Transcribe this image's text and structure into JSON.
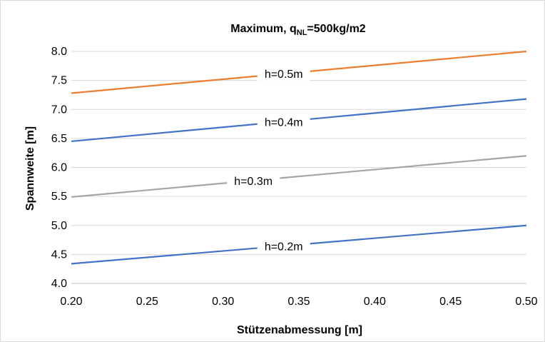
{
  "chart_data": {
    "type": "line",
    "title": "Maximum, q",
    "title_subscript": "NL",
    "title_suffix": "=500kg/m2",
    "xlabel": "Stützenabmessung [m]",
    "ylabel": "Spannweite [m]",
    "xlim": [
      0.2,
      0.5
    ],
    "ylim": [
      4.0,
      8.0
    ],
    "x_ticks": [
      "0.20",
      "0.25",
      "0.30",
      "0.35",
      "0.40",
      "0.45",
      "0.50"
    ],
    "y_ticks": [
      "4.0",
      "4.5",
      "5.0",
      "5.5",
      "6.0",
      "6.5",
      "7.0",
      "7.5",
      "8.0"
    ],
    "grid": "horizontal",
    "legend": "inline labels",
    "series": [
      {
        "name": "h=0.5m",
        "color": "#ed7d31",
        "x": [
          0.2,
          0.5
        ],
        "y": [
          7.28,
          8.0
        ],
        "label_x": 0.34
      },
      {
        "name": "h=0.4m",
        "color": "#4472c4",
        "x": [
          0.2,
          0.5
        ],
        "y": [
          6.45,
          7.18
        ],
        "label_x": 0.34
      },
      {
        "name": "h=0.3m",
        "color": "#a5a5a5",
        "x": [
          0.2,
          0.5
        ],
        "y": [
          5.49,
          6.2
        ],
        "label_x": 0.32
      },
      {
        "name": "h=0.2m",
        "color": "#4472c4",
        "x": [
          0.2,
          0.5
        ],
        "y": [
          4.34,
          5.0
        ],
        "label_x": 0.34
      }
    ]
  }
}
